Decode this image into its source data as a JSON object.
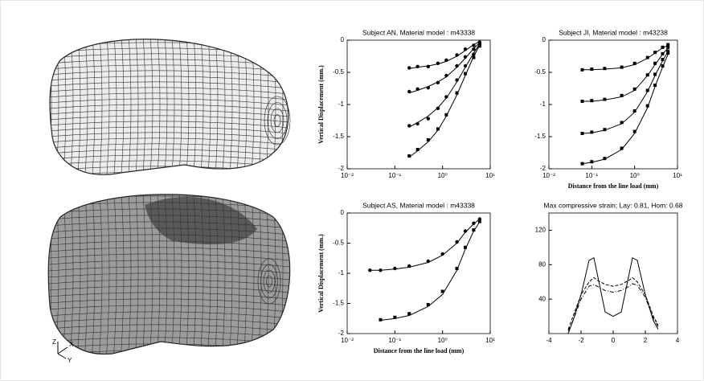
{
  "axis_triad": {
    "z": "Z",
    "x": "X",
    "y": "Y"
  },
  "chart_data": [
    {
      "type": "line",
      "title": "Subject AN,  Material model : m43338",
      "y_label": "Vertical Displacement (mm.)",
      "xscale": "log",
      "xlim": [
        0.01,
        10
      ],
      "ylim": [
        -2,
        0
      ],
      "xticks": [
        {
          "value": 0.01,
          "label": "10⁻²"
        },
        {
          "value": 0.1,
          "label": "10⁻¹"
        },
        {
          "value": 1,
          "label": "10⁰"
        },
        {
          "value": 10,
          "label": "10¹"
        }
      ],
      "yticks": [
        0,
        -0.5,
        -1,
        -1.5,
        -2
      ],
      "x": [
        0.2,
        0.3,
        0.5,
        0.8,
        1.2,
        2,
        3,
        4.5,
        6
      ],
      "series": [
        {
          "style": "markers",
          "marker": "circle",
          "color": "#000000",
          "values": [
            -0.43,
            -0.41,
            -0.41,
            -0.36,
            -0.31,
            -0.23,
            -0.14,
            -0.08,
            -0.03
          ]
        },
        {
          "style": "markers",
          "marker": "circle",
          "color": "#000000",
          "values": [
            -0.8,
            -0.76,
            -0.74,
            -0.66,
            -0.55,
            -0.4,
            -0.26,
            -0.14,
            -0.05
          ]
        },
        {
          "style": "markers",
          "marker": "circle",
          "color": "#000000",
          "values": [
            -1.33,
            -1.3,
            -1.22,
            -1.06,
            -0.88,
            -0.62,
            -0.4,
            -0.22,
            -0.07
          ]
        },
        {
          "style": "markers",
          "marker": "square",
          "color": "#000000",
          "values": [
            -1.8,
            -1.7,
            -1.55,
            -1.38,
            -1.16,
            -0.82,
            -0.52,
            -0.27,
            -0.09
          ]
        },
        {
          "style": "solid",
          "color": "#000000",
          "values": [
            -0.44,
            -0.42,
            -0.4,
            -0.37,
            -0.33,
            -0.25,
            -0.16,
            -0.07,
            -0.02
          ]
        },
        {
          "style": "solid",
          "color": "#000000",
          "values": [
            -0.82,
            -0.78,
            -0.72,
            -0.65,
            -0.57,
            -0.42,
            -0.28,
            -0.13,
            -0.04
          ]
        },
        {
          "style": "solid",
          "color": "#000000",
          "values": [
            -1.35,
            -1.28,
            -1.18,
            -1.05,
            -0.9,
            -0.65,
            -0.42,
            -0.2,
            -0.06
          ]
        },
        {
          "style": "solid",
          "color": "#000000",
          "values": [
            -1.82,
            -1.72,
            -1.58,
            -1.4,
            -1.18,
            -0.85,
            -0.55,
            -0.25,
            -0.08
          ]
        }
      ]
    },
    {
      "type": "line",
      "title": "Subject JI,  Material model : m43238",
      "x_label": "Distance from the line load (mm)",
      "xscale": "log",
      "xlim": [
        0.01,
        10
      ],
      "ylim": [
        -2,
        0
      ],
      "xticks": [
        {
          "value": 0.01,
          "label": "10⁻²"
        },
        {
          "value": 0.1,
          "label": "10⁻¹"
        },
        {
          "value": 1,
          "label": "10⁰"
        },
        {
          "value": 10,
          "label": "10¹"
        }
      ],
      "yticks": [
        0,
        -0.5,
        -1,
        -1.5,
        -2
      ],
      "x": [
        0.06,
        0.1,
        0.2,
        0.5,
        1,
        2,
        3,
        4.5,
        6
      ],
      "series": [
        {
          "style": "markers",
          "marker": "square",
          "color": "#000000",
          "values": [
            -0.46,
            -0.45,
            -0.44,
            -0.42,
            -0.36,
            -0.27,
            -0.19,
            -0.11,
            -0.07
          ]
        },
        {
          "style": "markers",
          "marker": "square",
          "color": "#000000",
          "values": [
            -0.95,
            -0.94,
            -0.92,
            -0.86,
            -0.76,
            -0.54,
            -0.36,
            -0.21,
            -0.11
          ]
        },
        {
          "style": "markers",
          "marker": "square",
          "color": "#000000",
          "values": [
            -1.45,
            -1.43,
            -1.39,
            -1.28,
            -1.1,
            -0.78,
            -0.53,
            -0.3,
            -0.17
          ]
        },
        {
          "style": "markers",
          "marker": "square",
          "color": "#000000",
          "values": [
            -1.92,
            -1.89,
            -1.84,
            -1.68,
            -1.42,
            -1.02,
            -0.7,
            -0.4,
            -0.2
          ]
        },
        {
          "style": "solid",
          "color": "#000000",
          "values": [
            -0.46,
            -0.46,
            -0.45,
            -0.43,
            -0.38,
            -0.28,
            -0.2,
            -0.12,
            -0.08
          ]
        },
        {
          "style": "solid",
          "color": "#000000",
          "values": [
            -0.95,
            -0.95,
            -0.93,
            -0.88,
            -0.78,
            -0.55,
            -0.38,
            -0.22,
            -0.12
          ]
        },
        {
          "style": "solid",
          "color": "#000000",
          "values": [
            -1.45,
            -1.44,
            -1.4,
            -1.3,
            -1.12,
            -0.8,
            -0.55,
            -0.32,
            -0.18
          ]
        },
        {
          "style": "solid",
          "color": "#000000",
          "values": [
            -1.92,
            -1.9,
            -1.85,
            -1.7,
            -1.45,
            -1.05,
            -0.72,
            -0.42,
            -0.22
          ]
        }
      ]
    },
    {
      "type": "line",
      "title": "Subject AS,  Material model : m43338",
      "y_label": "Vertical Displacement (mm.)",
      "x_label": "Distance from the line load (mm)",
      "xscale": "log",
      "xlim": [
        0.01,
        10
      ],
      "ylim": [
        -2,
        0
      ],
      "xticks": [
        {
          "value": 0.01,
          "label": "10⁻²"
        },
        {
          "value": 0.1,
          "label": "10⁻¹"
        },
        {
          "value": 1,
          "label": "10⁰"
        },
        {
          "value": 10,
          "label": "10¹"
        }
      ],
      "yticks": [
        0,
        -0.5,
        -1,
        -1.5,
        -2
      ],
      "x": [
        0.03,
        0.05,
        0.1,
        0.2,
        0.5,
        1,
        2,
        3,
        4.5,
        6
      ],
      "series": [
        {
          "style": "markers",
          "marker": "circle",
          "color": "#000000",
          "values": [
            -0.95,
            -0.95,
            -0.92,
            -0.88,
            -0.8,
            -0.68,
            -0.48,
            -0.3,
            -0.17,
            -0.1
          ]
        },
        {
          "style": "markers",
          "marker": "square",
          "color": "#000000",
          "values": [
            null,
            -1.77,
            -1.73,
            -1.67,
            -1.52,
            -1.3,
            -0.92,
            -0.57,
            -0.28,
            -0.14
          ]
        },
        {
          "style": "solid",
          "color": "#000000",
          "values": [
            -0.95,
            -0.95,
            -0.93,
            -0.9,
            -0.82,
            -0.7,
            -0.5,
            -0.32,
            -0.18,
            -0.1
          ]
        },
        {
          "style": "solid",
          "color": "#000000",
          "values": [
            null,
            -1.78,
            -1.75,
            -1.7,
            -1.55,
            -1.35,
            -0.95,
            -0.6,
            -0.3,
            -0.15
          ]
        }
      ]
    },
    {
      "type": "line",
      "title": "Max compressive strain; Lay: 0.81, Hom: 0.68",
      "xlim": [
        -4,
        4
      ],
      "ylim": [
        0,
        140
      ],
      "xticks": [
        -4,
        -2,
        0,
        2,
        4
      ],
      "yticks": [
        40,
        80,
        120
      ],
      "x": [
        -2.8,
        -2.5,
        -2,
        -1.5,
        -1.2,
        -1,
        -0.5,
        0,
        0.5,
        1,
        1.2,
        1.5,
        2,
        2.5,
        2.8
      ],
      "series": [
        {
          "style": "solid",
          "color": "#000000",
          "values": [
            0,
            15,
            45,
            85,
            88,
            70,
            25,
            20,
            25,
            70,
            88,
            85,
            45,
            15,
            5
          ]
        },
        {
          "style": "dashed",
          "color": "#000000",
          "values": [
            5,
            20,
            45,
            60,
            65,
            62,
            57,
            55,
            57,
            62,
            65,
            60,
            45,
            20,
            10
          ]
        },
        {
          "style": "dashdot",
          "color": "#000000",
          "values": [
            3,
            15,
            40,
            55,
            57,
            55,
            50,
            48,
            50,
            55,
            58,
            56,
            42,
            18,
            8
          ]
        }
      ]
    }
  ]
}
